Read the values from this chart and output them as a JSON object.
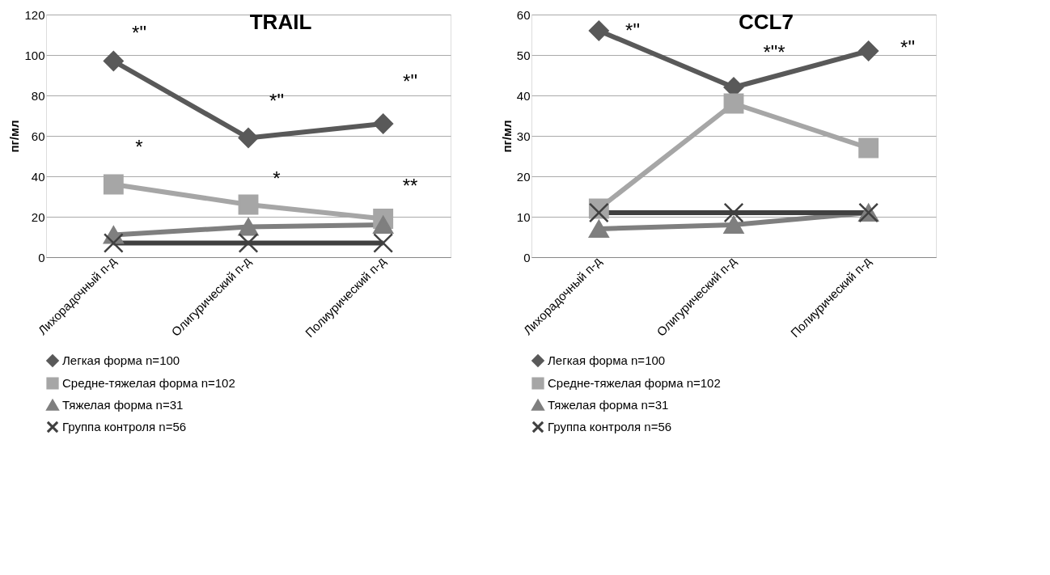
{
  "chart_data": [
    {
      "type": "line",
      "title": "TRAIL",
      "ylabel": "пг/мл",
      "categories": [
        "Лихорадочный п-д",
        "Олигурический п-д",
        "Полиурический п-д"
      ],
      "ylim": [
        0,
        120
      ],
      "yticks": [
        0,
        20,
        40,
        60,
        80,
        100,
        120
      ],
      "grid": "y",
      "legend": "bottom",
      "series": [
        {
          "name": "Легкая форма n=100",
          "color": "#595959",
          "marker": "diamond",
          "values": [
            97,
            59,
            66
          ]
        },
        {
          "name": "Средне-тяжелая форма n=102",
          "color": "#a6a6a6",
          "marker": "square",
          "values": [
            36,
            26,
            19
          ]
        },
        {
          "name": "Тяжелая форма n=31",
          "color": "#7f7f7f",
          "marker": "triangle",
          "values": [
            11,
            15,
            16
          ]
        },
        {
          "name": "Группа контроля n=56",
          "color": "#404040",
          "marker": "cross",
          "values": [
            7,
            7,
            7
          ]
        }
      ],
      "annotations": [
        "*\"",
        "*\"",
        "*\"",
        "*",
        "*",
        "**"
      ]
    },
    {
      "type": "line",
      "title": "CCL7",
      "ylabel": "пг/мл",
      "categories": [
        "Лихорадочный п-д",
        "Олигурический п-д",
        "Полиурический п-д"
      ],
      "ylim": [
        0,
        60
      ],
      "yticks": [
        0,
        10,
        20,
        30,
        40,
        50,
        60
      ],
      "grid": "y",
      "legend": "bottom",
      "series": [
        {
          "name": "Легкая форма n=100",
          "color": "#595959",
          "marker": "diamond",
          "values": [
            56,
            42,
            51
          ]
        },
        {
          "name": "Средне-тяжелая форма n=102",
          "color": "#a6a6a6",
          "marker": "square",
          "values": [
            12,
            38,
            27
          ]
        },
        {
          "name": "Тяжелая форма n=31",
          "color": "#7f7f7f",
          "marker": "triangle",
          "values": [
            7,
            8,
            11
          ]
        },
        {
          "name": "Группа контроля n=56",
          "color": "#404040",
          "marker": "cross",
          "values": [
            11,
            11,
            11
          ]
        }
      ],
      "annotations": [
        "*\"",
        "*\"*",
        "*\""
      ]
    }
  ]
}
